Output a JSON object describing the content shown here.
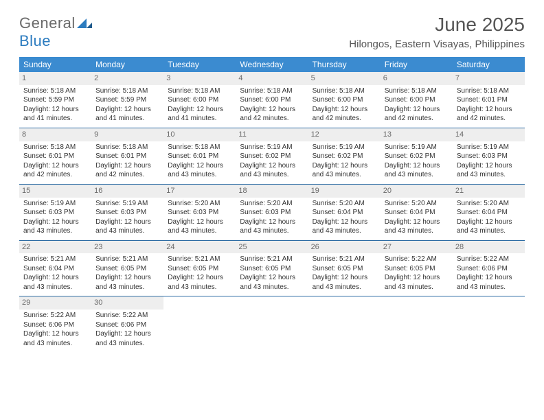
{
  "logo": {
    "word1": "General",
    "word2": "Blue"
  },
  "colors": {
    "header_bg": "#3b8bd0",
    "header_text": "#ffffff",
    "row_border": "#2b6aa3",
    "daynum_bg": "#eeeeee",
    "daynum_text": "#6a6a6a",
    "logo_gray": "#6a6a6a",
    "logo_blue": "#2b7bbf",
    "body_text": "#333333",
    "page_bg": "#ffffff"
  },
  "title": "June 2025",
  "location": "Hilongos, Eastern Visayas, Philippines",
  "day_headers": [
    "Sunday",
    "Monday",
    "Tuesday",
    "Wednesday",
    "Thursday",
    "Friday",
    "Saturday"
  ],
  "labels": {
    "sunrise": "Sunrise:",
    "sunset": "Sunset:",
    "daylight": "Daylight:"
  },
  "weeks": [
    [
      {
        "n": "1",
        "sr": "5:18 AM",
        "ss": "5:59 PM",
        "dl": "12 hours and 41 minutes."
      },
      {
        "n": "2",
        "sr": "5:18 AM",
        "ss": "5:59 PM",
        "dl": "12 hours and 41 minutes."
      },
      {
        "n": "3",
        "sr": "5:18 AM",
        "ss": "6:00 PM",
        "dl": "12 hours and 41 minutes."
      },
      {
        "n": "4",
        "sr": "5:18 AM",
        "ss": "6:00 PM",
        "dl": "12 hours and 42 minutes."
      },
      {
        "n": "5",
        "sr": "5:18 AM",
        "ss": "6:00 PM",
        "dl": "12 hours and 42 minutes."
      },
      {
        "n": "6",
        "sr": "5:18 AM",
        "ss": "6:00 PM",
        "dl": "12 hours and 42 minutes."
      },
      {
        "n": "7",
        "sr": "5:18 AM",
        "ss": "6:01 PM",
        "dl": "12 hours and 42 minutes."
      }
    ],
    [
      {
        "n": "8",
        "sr": "5:18 AM",
        "ss": "6:01 PM",
        "dl": "12 hours and 42 minutes."
      },
      {
        "n": "9",
        "sr": "5:18 AM",
        "ss": "6:01 PM",
        "dl": "12 hours and 42 minutes."
      },
      {
        "n": "10",
        "sr": "5:18 AM",
        "ss": "6:01 PM",
        "dl": "12 hours and 43 minutes."
      },
      {
        "n": "11",
        "sr": "5:19 AM",
        "ss": "6:02 PM",
        "dl": "12 hours and 43 minutes."
      },
      {
        "n": "12",
        "sr": "5:19 AM",
        "ss": "6:02 PM",
        "dl": "12 hours and 43 minutes."
      },
      {
        "n": "13",
        "sr": "5:19 AM",
        "ss": "6:02 PM",
        "dl": "12 hours and 43 minutes."
      },
      {
        "n": "14",
        "sr": "5:19 AM",
        "ss": "6:03 PM",
        "dl": "12 hours and 43 minutes."
      }
    ],
    [
      {
        "n": "15",
        "sr": "5:19 AM",
        "ss": "6:03 PM",
        "dl": "12 hours and 43 minutes."
      },
      {
        "n": "16",
        "sr": "5:19 AM",
        "ss": "6:03 PM",
        "dl": "12 hours and 43 minutes."
      },
      {
        "n": "17",
        "sr": "5:20 AM",
        "ss": "6:03 PM",
        "dl": "12 hours and 43 minutes."
      },
      {
        "n": "18",
        "sr": "5:20 AM",
        "ss": "6:03 PM",
        "dl": "12 hours and 43 minutes."
      },
      {
        "n": "19",
        "sr": "5:20 AM",
        "ss": "6:04 PM",
        "dl": "12 hours and 43 minutes."
      },
      {
        "n": "20",
        "sr": "5:20 AM",
        "ss": "6:04 PM",
        "dl": "12 hours and 43 minutes."
      },
      {
        "n": "21",
        "sr": "5:20 AM",
        "ss": "6:04 PM",
        "dl": "12 hours and 43 minutes."
      }
    ],
    [
      {
        "n": "22",
        "sr": "5:21 AM",
        "ss": "6:04 PM",
        "dl": "12 hours and 43 minutes."
      },
      {
        "n": "23",
        "sr": "5:21 AM",
        "ss": "6:05 PM",
        "dl": "12 hours and 43 minutes."
      },
      {
        "n": "24",
        "sr": "5:21 AM",
        "ss": "6:05 PM",
        "dl": "12 hours and 43 minutes."
      },
      {
        "n": "25",
        "sr": "5:21 AM",
        "ss": "6:05 PM",
        "dl": "12 hours and 43 minutes."
      },
      {
        "n": "26",
        "sr": "5:21 AM",
        "ss": "6:05 PM",
        "dl": "12 hours and 43 minutes."
      },
      {
        "n": "27",
        "sr": "5:22 AM",
        "ss": "6:05 PM",
        "dl": "12 hours and 43 minutes."
      },
      {
        "n": "28",
        "sr": "5:22 AM",
        "ss": "6:06 PM",
        "dl": "12 hours and 43 minutes."
      }
    ],
    [
      {
        "n": "29",
        "sr": "5:22 AM",
        "ss": "6:06 PM",
        "dl": "12 hours and 43 minutes."
      },
      {
        "n": "30",
        "sr": "5:22 AM",
        "ss": "6:06 PM",
        "dl": "12 hours and 43 minutes."
      },
      null,
      null,
      null,
      null,
      null
    ]
  ]
}
